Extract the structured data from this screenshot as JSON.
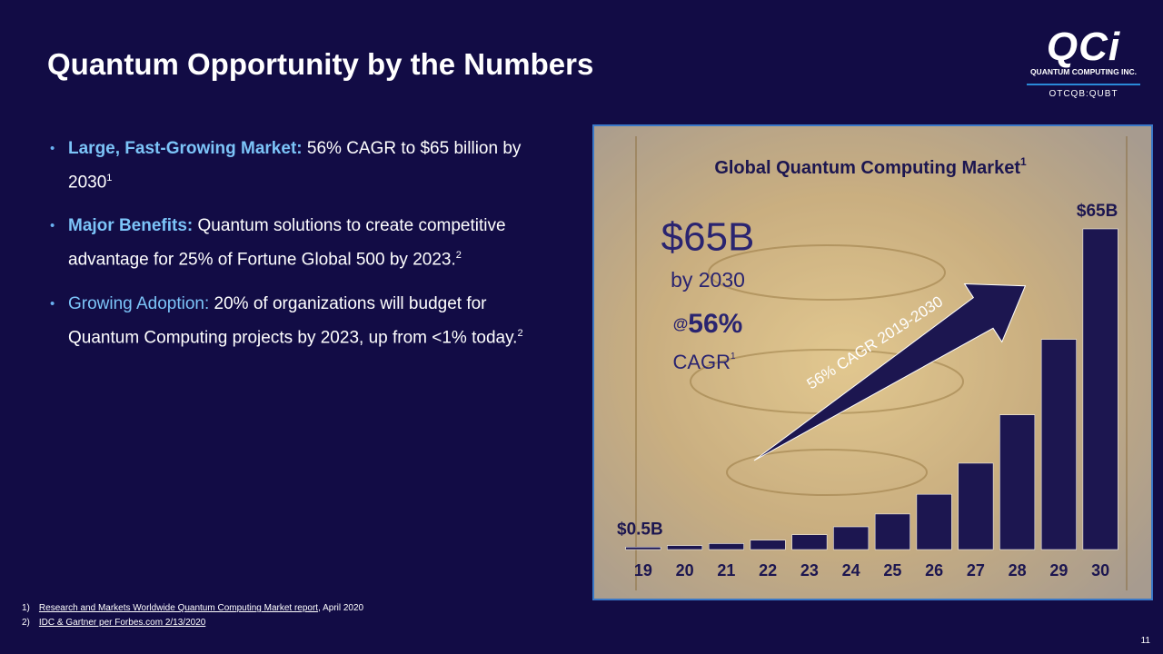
{
  "header": {
    "title": "Quantum Opportunity by the Numbers"
  },
  "logo": {
    "mark": "QCi",
    "company": "QUANTUM COMPUTING INC.",
    "ticker": "OTCQB:QUBT"
  },
  "bullets": [
    {
      "label": "Large, Fast-Growing Market:",
      "text": "56% CAGR to $65 billion by 2030",
      "note": "1"
    },
    {
      "label": "Major Benefits:",
      "text": "Quantum solutions to create competitive advantage for 25% of Fortune Global 500 by 2023.",
      "note": "2"
    },
    {
      "label": "Growing Adoption:",
      "text": "20% of organizations will budget for Quantum Computing projects by 2023, up from <1% today.",
      "note": "2"
    }
  ],
  "chart_data": {
    "type": "bar",
    "title": "Global Quantum Computing Market",
    "title_note": "1",
    "callout": {
      "amount": "$65B",
      "year": "by 2030",
      "at": "@",
      "rate": "56%",
      "rate_label": "CAGR",
      "note": "1"
    },
    "arrow_label": "56% CAGR 2019-2030",
    "categories": [
      "19",
      "20",
      "21",
      "22",
      "23",
      "24",
      "25",
      "26",
      "27",
      "28",
      "29",
      "30"
    ],
    "values": [
      0.5,
      0.8,
      1.2,
      1.9,
      3.0,
      4.6,
      7.2,
      11.2,
      17.5,
      27.3,
      42.6,
      65
    ],
    "value_labels": [
      "$0.5B",
      null,
      null,
      null,
      null,
      null,
      null,
      null,
      null,
      null,
      null,
      "$65B"
    ],
    "color": "#1c1650"
  },
  "footnotes": [
    {
      "num": "1)",
      "link": "Research and Markets Worldwide Quantum Computing Market report",
      "rest": ", April 2020"
    },
    {
      "num": "2)",
      "link": "IDC & Gartner per Forbes.com 2/13/2020 ",
      "rest": null
    }
  ],
  "page_number": "11"
}
